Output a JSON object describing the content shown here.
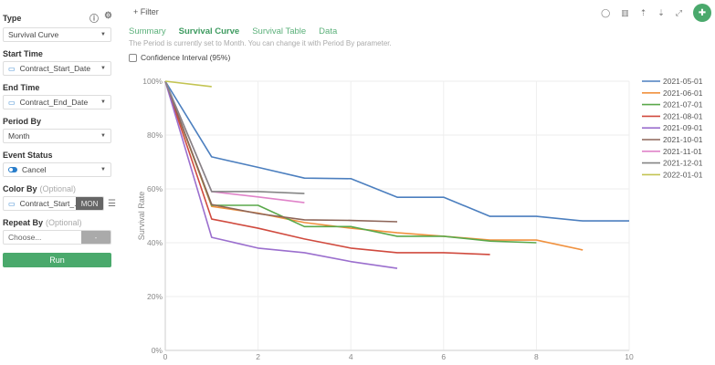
{
  "sidebar": {
    "type_label": "Type",
    "type_value": "Survival Curve",
    "help_icon": "?",
    "gear_icon": "⚙",
    "start_time_label": "Start Time",
    "start_time_value": "Contract_Start_Date",
    "end_time_label": "End Time",
    "end_time_value": "Contract_End_Date",
    "period_by_label": "Period By",
    "period_by_value": "Month",
    "event_status_label": "Event Status",
    "event_status_value": "Cancel",
    "color_by_label": "Color By",
    "color_by_optional": "(Optional)",
    "color_by_value": "Contract_Start_...",
    "color_by_unit": "MON",
    "repeat_by_label": "Repeat By",
    "repeat_by_optional": "(Optional)",
    "repeat_by_placeholder": "Choose...",
    "repeat_by_unit": "-",
    "run_label": "Run"
  },
  "header": {
    "filter_label": "+ Filter",
    "tabs": [
      {
        "label": "Summary",
        "active": false
      },
      {
        "label": "Survival Curve",
        "active": true
      },
      {
        "label": "Survival Table",
        "active": false
      },
      {
        "label": "Data",
        "active": false
      }
    ],
    "hint": "The Period is currently set to Month. You can change it with Period By parameter.",
    "confidence_label": "Confidence Interval (95%)"
  },
  "toolbar": {
    "icons": [
      "comment-icon",
      "chart-icon",
      "upload-icon",
      "download-icon",
      "expand-icon",
      "pin-icon"
    ]
  },
  "chart_data": {
    "type": "line",
    "title": "",
    "xlabel": "",
    "ylabel": "Survival Rate",
    "xlim": [
      0,
      10
    ],
    "ylim": [
      0,
      100
    ],
    "x_ticks": [
      "0",
      "2",
      "4",
      "6",
      "8",
      "10"
    ],
    "y_ticks": [
      "0%",
      "20%",
      "40%",
      "60%",
      "80%",
      "100%"
    ],
    "grid": true,
    "legend_position": "right",
    "series": [
      {
        "name": "2021-05-01",
        "color": "#4c7fbf",
        "x": [
          0,
          1,
          2,
          3,
          4,
          5,
          6,
          7,
          8,
          9,
          10
        ],
        "values": [
          100,
          71.9,
          68,
          64,
          63.8,
          56.9,
          56.9,
          49.8,
          49.8,
          48.1,
          48.1
        ]
      },
      {
        "name": "2021-06-01",
        "color": "#f0913e",
        "x": [
          0,
          1,
          2,
          3,
          4,
          5,
          6,
          7,
          8,
          9
        ],
        "values": [
          100,
          53.5,
          51,
          47.5,
          45.4,
          43.7,
          42.4,
          41,
          41,
          37.3
        ]
      },
      {
        "name": "2021-07-01",
        "color": "#5aa84a",
        "x": [
          0,
          1,
          2,
          3,
          4,
          5,
          6,
          7,
          8
        ],
        "values": [
          100,
          53.9,
          53.9,
          46,
          46,
          42.4,
          42.4,
          40.6,
          40
        ]
      },
      {
        "name": "2021-08-01",
        "color": "#d04a3e",
        "x": [
          0,
          1,
          2,
          3,
          4,
          5,
          6,
          7
        ],
        "values": [
          100,
          48.8,
          45.4,
          41.4,
          38,
          36.3,
          36.3,
          35.6
        ]
      },
      {
        "name": "2021-09-01",
        "color": "#9b6fce",
        "x": [
          0,
          1,
          2,
          3,
          4,
          5
        ],
        "values": [
          100,
          42,
          38,
          36.3,
          33,
          30.5
        ]
      },
      {
        "name": "2021-10-01",
        "color": "#8d6558",
        "x": [
          0,
          1,
          2,
          3,
          4,
          5
        ],
        "values": [
          100,
          54.2,
          50.8,
          48.5,
          48.3,
          47.8
        ]
      },
      {
        "name": "2021-11-01",
        "color": "#e083c9",
        "x": [
          0,
          1,
          2,
          3
        ],
        "values": [
          100,
          59,
          57,
          54.9
        ]
      },
      {
        "name": "2021-12-01",
        "color": "#858585",
        "x": [
          0,
          1,
          2,
          3
        ],
        "values": [
          100,
          59,
          59,
          58.3
        ]
      },
      {
        "name": "2022-01-01",
        "color": "#c3c452",
        "x": [
          0,
          1
        ],
        "values": [
          100,
          98
        ]
      }
    ]
  }
}
